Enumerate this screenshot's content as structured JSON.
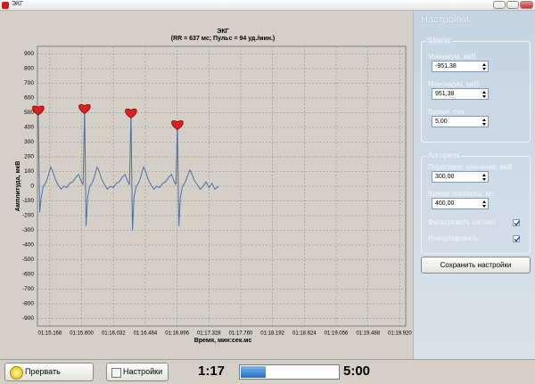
{
  "window": {
    "title": "ЭКГ"
  },
  "chart_data": {
    "type": "line",
    "title": "ЭКГ",
    "subtitle": "(RR = 637 мс; Пульс = 94 уд./мин.)",
    "x_label": "Время, мин:сек.мс",
    "y_label": "Амплитуда, мкВ",
    "x": [
      75.01,
      75.03,
      75.05,
      75.08,
      75.11,
      75.14,
      75.18,
      75.21,
      75.24,
      75.28,
      75.32,
      75.36,
      75.4,
      75.44,
      75.48,
      75.52,
      75.56,
      75.59,
      75.62,
      75.64,
      75.66,
      75.68,
      75.71,
      75.74,
      75.77,
      75.81,
      75.84,
      75.87,
      75.91,
      75.95,
      75.99,
      76.03,
      76.07,
      76.11,
      76.15,
      76.19,
      76.22,
      76.25,
      76.27,
      76.29,
      76.31,
      76.34,
      76.37,
      76.4,
      76.44,
      76.47,
      76.5,
      76.54,
      76.58,
      76.62,
      76.66,
      76.7,
      76.74,
      76.78,
      76.82,
      76.85,
      76.88,
      76.9,
      76.92,
      76.94,
      76.97,
      77.0,
      77.03,
      77.07,
      77.1,
      77.13,
      77.17,
      77.21,
      77.25,
      77.29,
      77.33,
      77.37,
      77.41,
      77.46
    ],
    "series": [
      {
        "color": "#4f6fa3",
        "values": [
          520,
          -180,
          -80,
          0,
          20,
          60,
          130,
          100,
          50,
          10,
          -20,
          0,
          -10,
          20,
          30,
          60,
          80,
          40,
          10,
          530,
          -270,
          -80,
          0,
          20,
          60,
          130,
          100,
          50,
          10,
          -20,
          0,
          -10,
          20,
          30,
          60,
          80,
          40,
          10,
          500,
          -300,
          -80,
          0,
          20,
          60,
          130,
          100,
          50,
          10,
          -20,
          0,
          -10,
          20,
          30,
          60,
          80,
          40,
          10,
          420,
          -270,
          -80,
          0,
          20,
          60,
          110,
          80,
          40,
          10,
          -20,
          0,
          30,
          -10,
          20,
          -20,
          0
        ]
      }
    ],
    "xlim": [
      75,
      80
    ],
    "ylim": [
      -951.38,
      951.38
    ],
    "yticks": [
      -900,
      -800,
      -700,
      -600,
      -500,
      -400,
      -300,
      -200,
      -100,
      0,
      100,
      200,
      300,
      400,
      500,
      600,
      700,
      800,
      900
    ],
    "xticks": [
      {
        "value": 75.168,
        "label": "01:15.168"
      },
      {
        "value": 75.6,
        "label": "01:15.600"
      },
      {
        "value": 76.032,
        "label": "01:16.032"
      },
      {
        "value": 76.464,
        "label": "01:16.464"
      },
      {
        "value": 76.896,
        "label": "01:16.896"
      },
      {
        "value": 77.328,
        "label": "01:17.328"
      },
      {
        "value": 77.76,
        "label": "01:17.760"
      },
      {
        "value": 78.192,
        "label": "01:18.192"
      },
      {
        "value": 78.624,
        "label": "01:18.624"
      },
      {
        "value": 79.056,
        "label": "01:19.056"
      },
      {
        "value": 79.488,
        "label": "01:19.488"
      },
      {
        "value": 79.92,
        "label": "01:19.920"
      }
    ],
    "grid": true
  },
  "settings": {
    "title": "Настройки",
    "scale": {
      "title": "Шкала",
      "fields": [
        {
          "label": "Минимум, мкВ",
          "value": "-951,38"
        },
        {
          "label": "Максимум, мкВ",
          "value": "951,38"
        },
        {
          "label": "Время, сек",
          "value": "5,00"
        }
      ]
    },
    "algorithm": {
      "title": "Алгоритм",
      "fields": [
        {
          "label": "Пороговое значение, мкВ",
          "value": "300,00"
        },
        {
          "label": "Время пропуска, мс",
          "value": "400,00"
        }
      ],
      "checkboxes": [
        {
          "label": "Фильтровать сигнал",
          "checked": true
        },
        {
          "label": "Инвертировать",
          "checked": true
        }
      ]
    },
    "save_button": "Сохранить настройки"
  },
  "toolbar": {
    "stop_button": "Прервать",
    "settings_button": "Настройки",
    "elapsed": "1:17",
    "total": "5:00"
  }
}
